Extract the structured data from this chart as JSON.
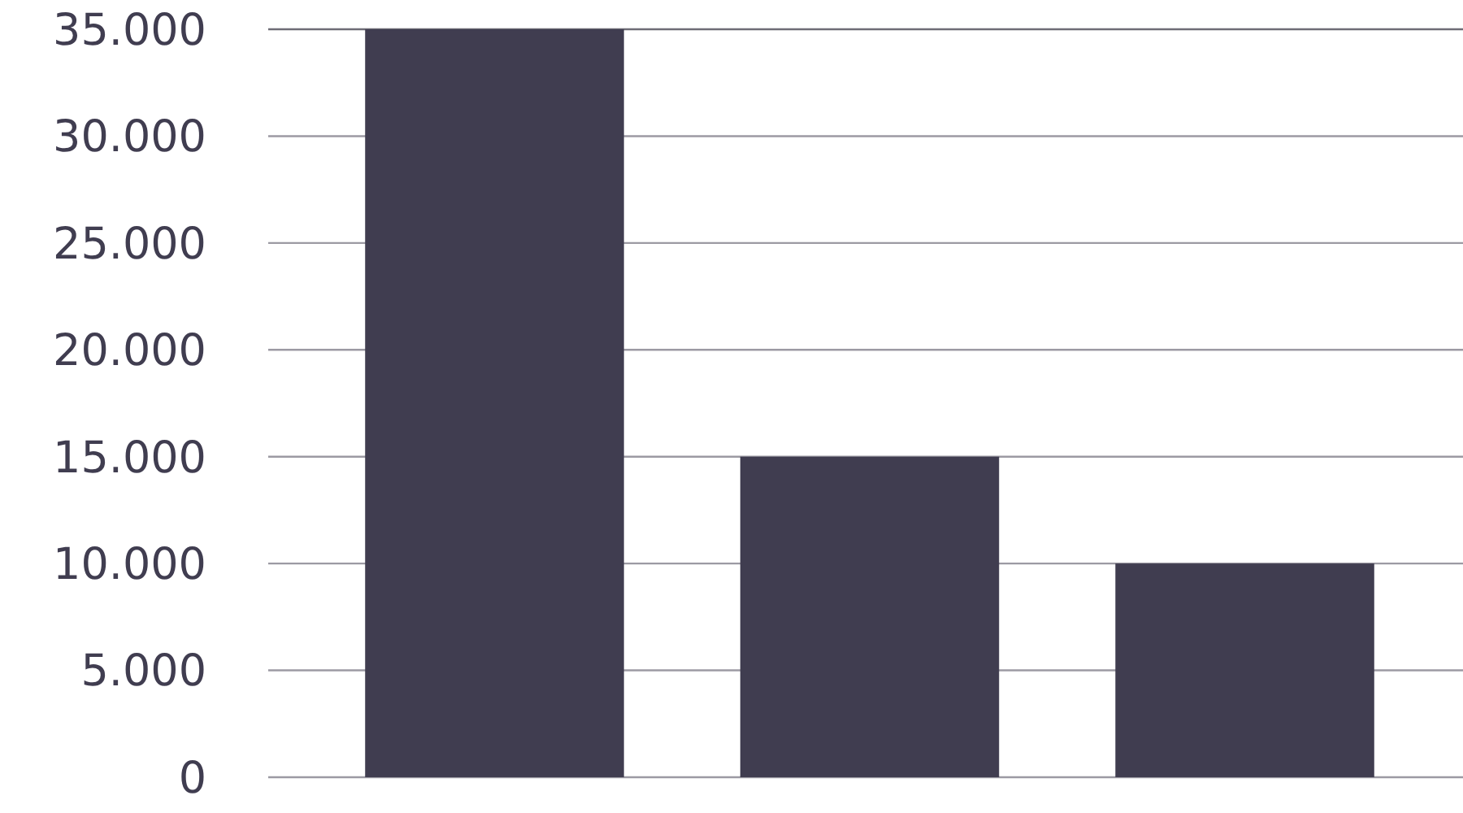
{
  "chart_data": {
    "type": "bar",
    "categories": [
      null,
      null,
      null
    ],
    "values": [
      35000,
      15000,
      10000
    ],
    "color": "#403d50",
    "ylim": [
      0,
      35000
    ],
    "yticks": [
      0,
      {
        "value": 5000,
        "label": "5.000"
      },
      {
        "value": 10000,
        "label": "10.000"
      },
      {
        "value": 15000,
        "label": "15.000"
      },
      {
        "value": 20000,
        "label": "20.000"
      },
      {
        "value": 25000,
        "label": "25.000"
      },
      {
        "value": 30000,
        "label": "30.000"
      },
      {
        "value": 35000,
        "label": "35.000"
      }
    ],
    "grid": "y",
    "tick_labels": "y"
  }
}
